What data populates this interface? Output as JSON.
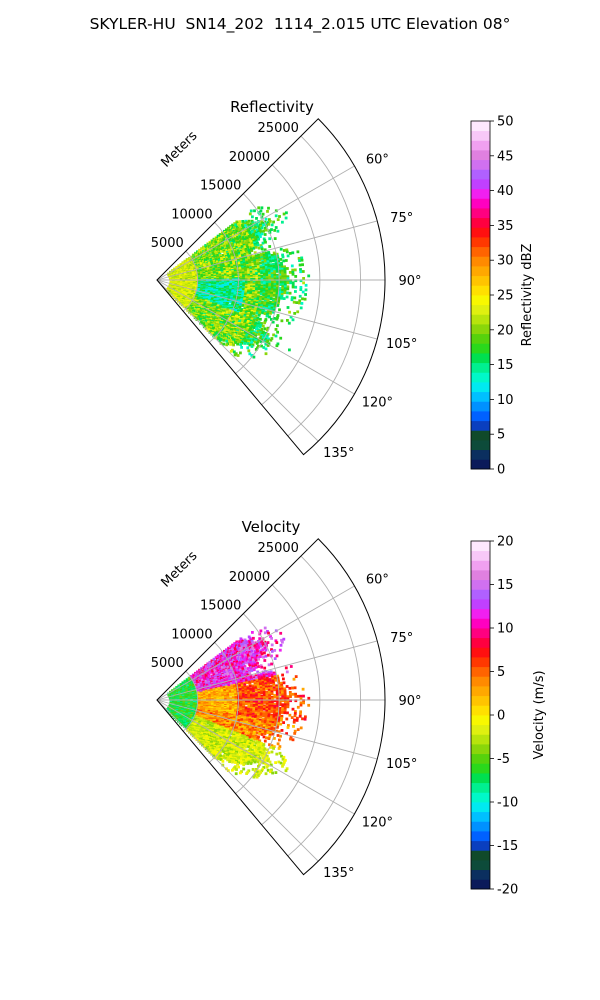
{
  "figure": {
    "title": "SKYLER-HU  SN14_202  1114_2.015 UTC Elevation 08°"
  },
  "chart_data": [
    {
      "type": "heatmap",
      "title": "Reflectivity",
      "range_label": "Meters",
      "range_ticks": [
        5000,
        10000,
        15000,
        20000,
        25000
      ],
      "range_max": 28000,
      "azimuth_range_deg": [
        45,
        140
      ],
      "azimuth_ticks": [
        "60°",
        "75°",
        "90°",
        "105°",
        "120°",
        "135°"
      ],
      "azimuth_tick_values": [
        60,
        75,
        90,
        105,
        120,
        135
      ],
      "grid": true,
      "colorbar": {
        "label": "Reflectivity dBZ",
        "min": 0,
        "max": 50,
        "ticks": [
          0,
          5,
          10,
          15,
          20,
          25,
          30,
          35,
          40,
          45,
          50
        ],
        "colors": [
          "#0b1a5a",
          "#0b2f5f",
          "#0d4b3a",
          "#104a2a",
          "#0a3fbf",
          "#0061ff",
          "#0091ff",
          "#00c0ff",
          "#00eaf0",
          "#00f8c8",
          "#00f090",
          "#00e050",
          "#2ad81c",
          "#56d20c",
          "#8ad60a",
          "#b8e40c",
          "#e0f010",
          "#f8f800",
          "#ffe000",
          "#ffc400",
          "#ffa800",
          "#ff8a00",
          "#ff6400",
          "#ff3800",
          "#ff1010",
          "#ff0040",
          "#ff0080",
          "#ff00c0",
          "#f020f0",
          "#c040ff",
          "#b060ff",
          "#d070f0",
          "#e080e0",
          "#f0a0f0",
          "#f8c8f8",
          "#fde8fd"
        ]
      },
      "echo_regions": {
        "near_range": "yellow-green",
        "mid_range": "green with cyan/light-blue core",
        "far_range": "scattered green/cyan returns"
      }
    },
    {
      "type": "heatmap",
      "title": "Velocity",
      "range_label": "Meters",
      "range_ticks": [
        5000,
        10000,
        15000,
        20000,
        25000
      ],
      "range_max": 28000,
      "azimuth_range_deg": [
        45,
        140
      ],
      "azimuth_ticks": [
        "60°",
        "75°",
        "90°",
        "105°",
        "120°",
        "135°"
      ],
      "azimuth_tick_values": [
        60,
        75,
        90,
        105,
        120,
        135
      ],
      "grid": true,
      "colorbar": {
        "label": "Velocity (m/s)",
        "min": -20,
        "max": 20,
        "ticks": [
          -20,
          -15,
          -10,
          -5,
          0,
          5,
          10,
          15,
          20
        ],
        "colors": [
          "#0b1a5a",
          "#0b2f5f",
          "#0d4b3a",
          "#104a2a",
          "#0a3fbf",
          "#0061ff",
          "#0091ff",
          "#00c0ff",
          "#00eaf0",
          "#00f8c8",
          "#00f090",
          "#00e050",
          "#2ad81c",
          "#56d20c",
          "#8ad60a",
          "#b8e40c",
          "#e0f010",
          "#f8f800",
          "#ffe000",
          "#ffc400",
          "#ffa800",
          "#ff8a00",
          "#ff6400",
          "#ff3800",
          "#ff1010",
          "#ff0040",
          "#ff0080",
          "#ff00c0",
          "#f020f0",
          "#c040ff",
          "#b060ff",
          "#d070f0",
          "#e080e0",
          "#f0a0f0",
          "#f8c8f8",
          "#fde8fd"
        ]
      },
      "echo_regions": {
        "near_range": "green/cyan (-8 to -5 m/s)",
        "upper_sector": "red/magenta (+10 to +15 m/s)",
        "center_sector": "yellow/orange (0 to +5 m/s)",
        "lower_sector": "light green (-3 to 0 m/s)"
      }
    }
  ]
}
